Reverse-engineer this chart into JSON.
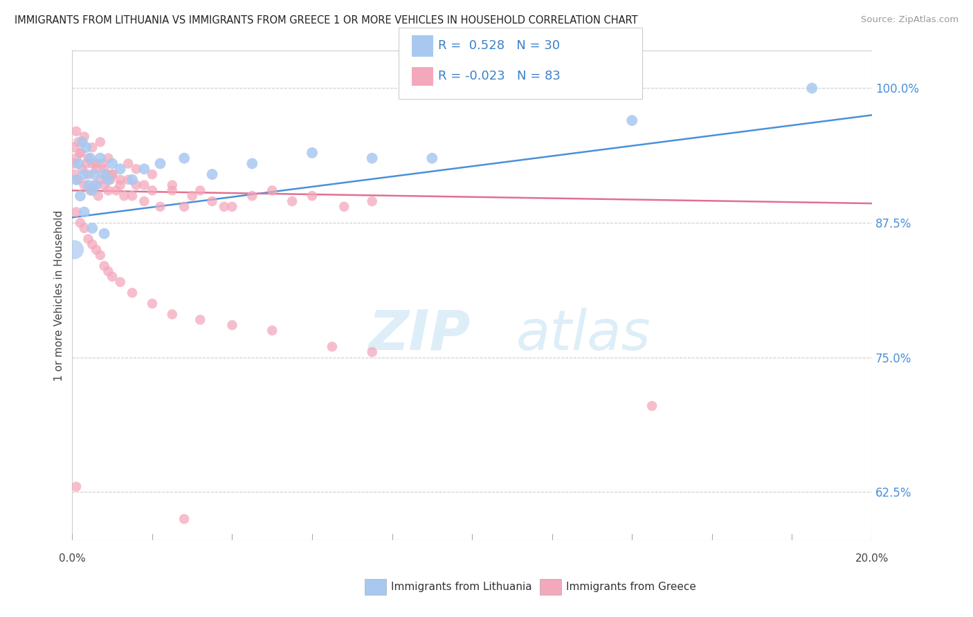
{
  "title": "IMMIGRANTS FROM LITHUANIA VS IMMIGRANTS FROM GREECE 1 OR MORE VEHICLES IN HOUSEHOLD CORRELATION CHART",
  "source_text": "Source: ZipAtlas.com",
  "ylabel_label": "1 or more Vehicles in Household",
  "xlim": [
    0.0,
    20.0
  ],
  "ylim": [
    58.0,
    103.5
  ],
  "ytick_vals": [
    62.5,
    75.0,
    87.5,
    100.0
  ],
  "legend_r_lith": "0.528",
  "legend_n_lith": "30",
  "legend_r_greece": "-0.023",
  "legend_n_greece": "83",
  "color_lithuania": "#a8c8f0",
  "color_greece": "#f4a8bc",
  "color_trend_lithuania": "#4a90d9",
  "color_trend_greece": "#e07090",
  "watermark_color": "#ddeef8",
  "lith_trend_y0": 88.0,
  "lith_trend_y1": 97.5,
  "greece_trend_y0": 90.5,
  "greece_trend_y1": 89.3,
  "lith_x": [
    0.1,
    0.15,
    0.2,
    0.25,
    0.3,
    0.35,
    0.4,
    0.45,
    0.5,
    0.55,
    0.6,
    0.7,
    0.8,
    0.9,
    1.0,
    1.2,
    1.5,
    1.8,
    2.2,
    2.8,
    3.5,
    4.5,
    6.0,
    7.5,
    9.0,
    0.3,
    0.5,
    0.8,
    14.0,
    18.5
  ],
  "lith_y": [
    91.5,
    93.0,
    90.0,
    95.0,
    92.0,
    94.5,
    91.0,
    93.5,
    90.5,
    92.0,
    91.0,
    93.5,
    92.0,
    91.5,
    93.0,
    92.5,
    91.5,
    92.5,
    93.0,
    93.5,
    92.0,
    93.0,
    94.0,
    93.5,
    93.5,
    88.5,
    87.0,
    86.5,
    97.0,
    100.0
  ],
  "greece_x": [
    0.05,
    0.1,
    0.15,
    0.2,
    0.25,
    0.3,
    0.35,
    0.4,
    0.45,
    0.5,
    0.55,
    0.6,
    0.65,
    0.7,
    0.75,
    0.8,
    0.85,
    0.9,
    0.95,
    1.0,
    1.1,
    1.2,
    1.3,
    1.4,
    1.5,
    1.6,
    1.8,
    2.0,
    2.2,
    2.5,
    2.8,
    3.2,
    3.8,
    4.5,
    5.0,
    5.5,
    6.0,
    6.8,
    7.5,
    0.05,
    0.1,
    0.15,
    0.2,
    0.3,
    0.4,
    0.5,
    0.6,
    0.7,
    0.8,
    0.9,
    1.0,
    1.2,
    1.4,
    1.6,
    1.8,
    2.0,
    2.5,
    3.0,
    3.5,
    4.0,
    0.1,
    0.2,
    0.3,
    0.4,
    0.5,
    0.6,
    0.7,
    0.8,
    0.9,
    1.0,
    1.2,
    1.5,
    2.0,
    2.5,
    3.2,
    4.0,
    5.0,
    6.5,
    7.5,
    14.5,
    0.1,
    2.8,
    0.05
  ],
  "greece_y": [
    92.0,
    93.5,
    91.5,
    94.0,
    92.5,
    91.0,
    93.0,
    92.0,
    90.5,
    93.0,
    91.0,
    92.5,
    90.0,
    91.5,
    93.0,
    91.0,
    92.0,
    90.5,
    91.5,
    92.0,
    90.5,
    91.0,
    90.0,
    91.5,
    90.0,
    91.0,
    89.5,
    90.5,
    89.0,
    90.5,
    89.0,
    90.5,
    89.0,
    90.0,
    90.5,
    89.5,
    90.0,
    89.0,
    89.5,
    94.5,
    96.0,
    95.0,
    94.0,
    95.5,
    93.5,
    94.5,
    93.0,
    95.0,
    92.5,
    93.5,
    92.0,
    91.5,
    93.0,
    92.5,
    91.0,
    92.0,
    91.0,
    90.0,
    89.5,
    89.0,
    88.5,
    87.5,
    87.0,
    86.0,
    85.5,
    85.0,
    84.5,
    83.5,
    83.0,
    82.5,
    82.0,
    81.0,
    80.0,
    79.0,
    78.5,
    78.0,
    77.5,
    76.0,
    75.5,
    70.5,
    63.0,
    60.0,
    93.0
  ]
}
